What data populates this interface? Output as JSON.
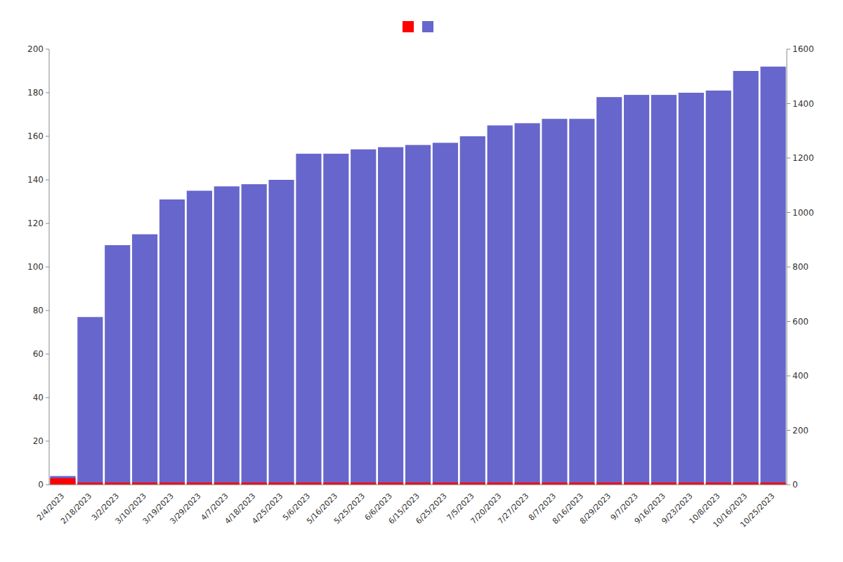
{
  "chart_data": {
    "type": "bar",
    "categories": [
      "2/4/2023",
      "2/18/2023",
      "3/2/2023",
      "3/10/2023",
      "3/19/2023",
      "3/29/2023",
      "4/7/2023",
      "4/18/2023",
      "4/25/2023",
      "5/6/2023",
      "5/16/2023",
      "5/25/2023",
      "6/6/2023",
      "6/15/2023",
      "6/25/2023",
      "7/5/2023",
      "7/20/2023",
      "7/27/2023",
      "8/7/2023",
      "8/16/2023",
      "8/29/2023",
      "9/7/2023",
      "9/16/2023",
      "9/23/2023",
      "10/8/2023",
      "10/16/2023",
      "10/25/2023"
    ],
    "series": [
      {
        "color": "#6666cc",
        "values": [
          4,
          77,
          110,
          115,
          131,
          135,
          137,
          138,
          140,
          152,
          152,
          154,
          155,
          156,
          157,
          160,
          165,
          166,
          168,
          168,
          178,
          179,
          179,
          180,
          181,
          190,
          192
        ]
      },
      {
        "color": "#ff0000",
        "values": [
          3,
          1,
          1,
          1,
          1,
          1,
          1,
          1,
          1,
          1,
          1,
          1,
          1,
          1,
          1,
          1,
          1,
          1,
          1,
          1,
          1,
          1,
          1,
          1,
          1,
          1,
          1
        ]
      }
    ],
    "stacked": false,
    "ylim": [
      0,
      200
    ],
    "yticks": [
      0,
      20,
      40,
      60,
      80,
      100,
      120,
      140,
      160,
      180,
      200
    ],
    "y2lim": [
      0,
      1600
    ],
    "y2ticks": [
      0,
      200,
      400,
      600,
      800,
      1000,
      1200,
      1400,
      1600
    ],
    "grid": false,
    "legend": "top"
  }
}
